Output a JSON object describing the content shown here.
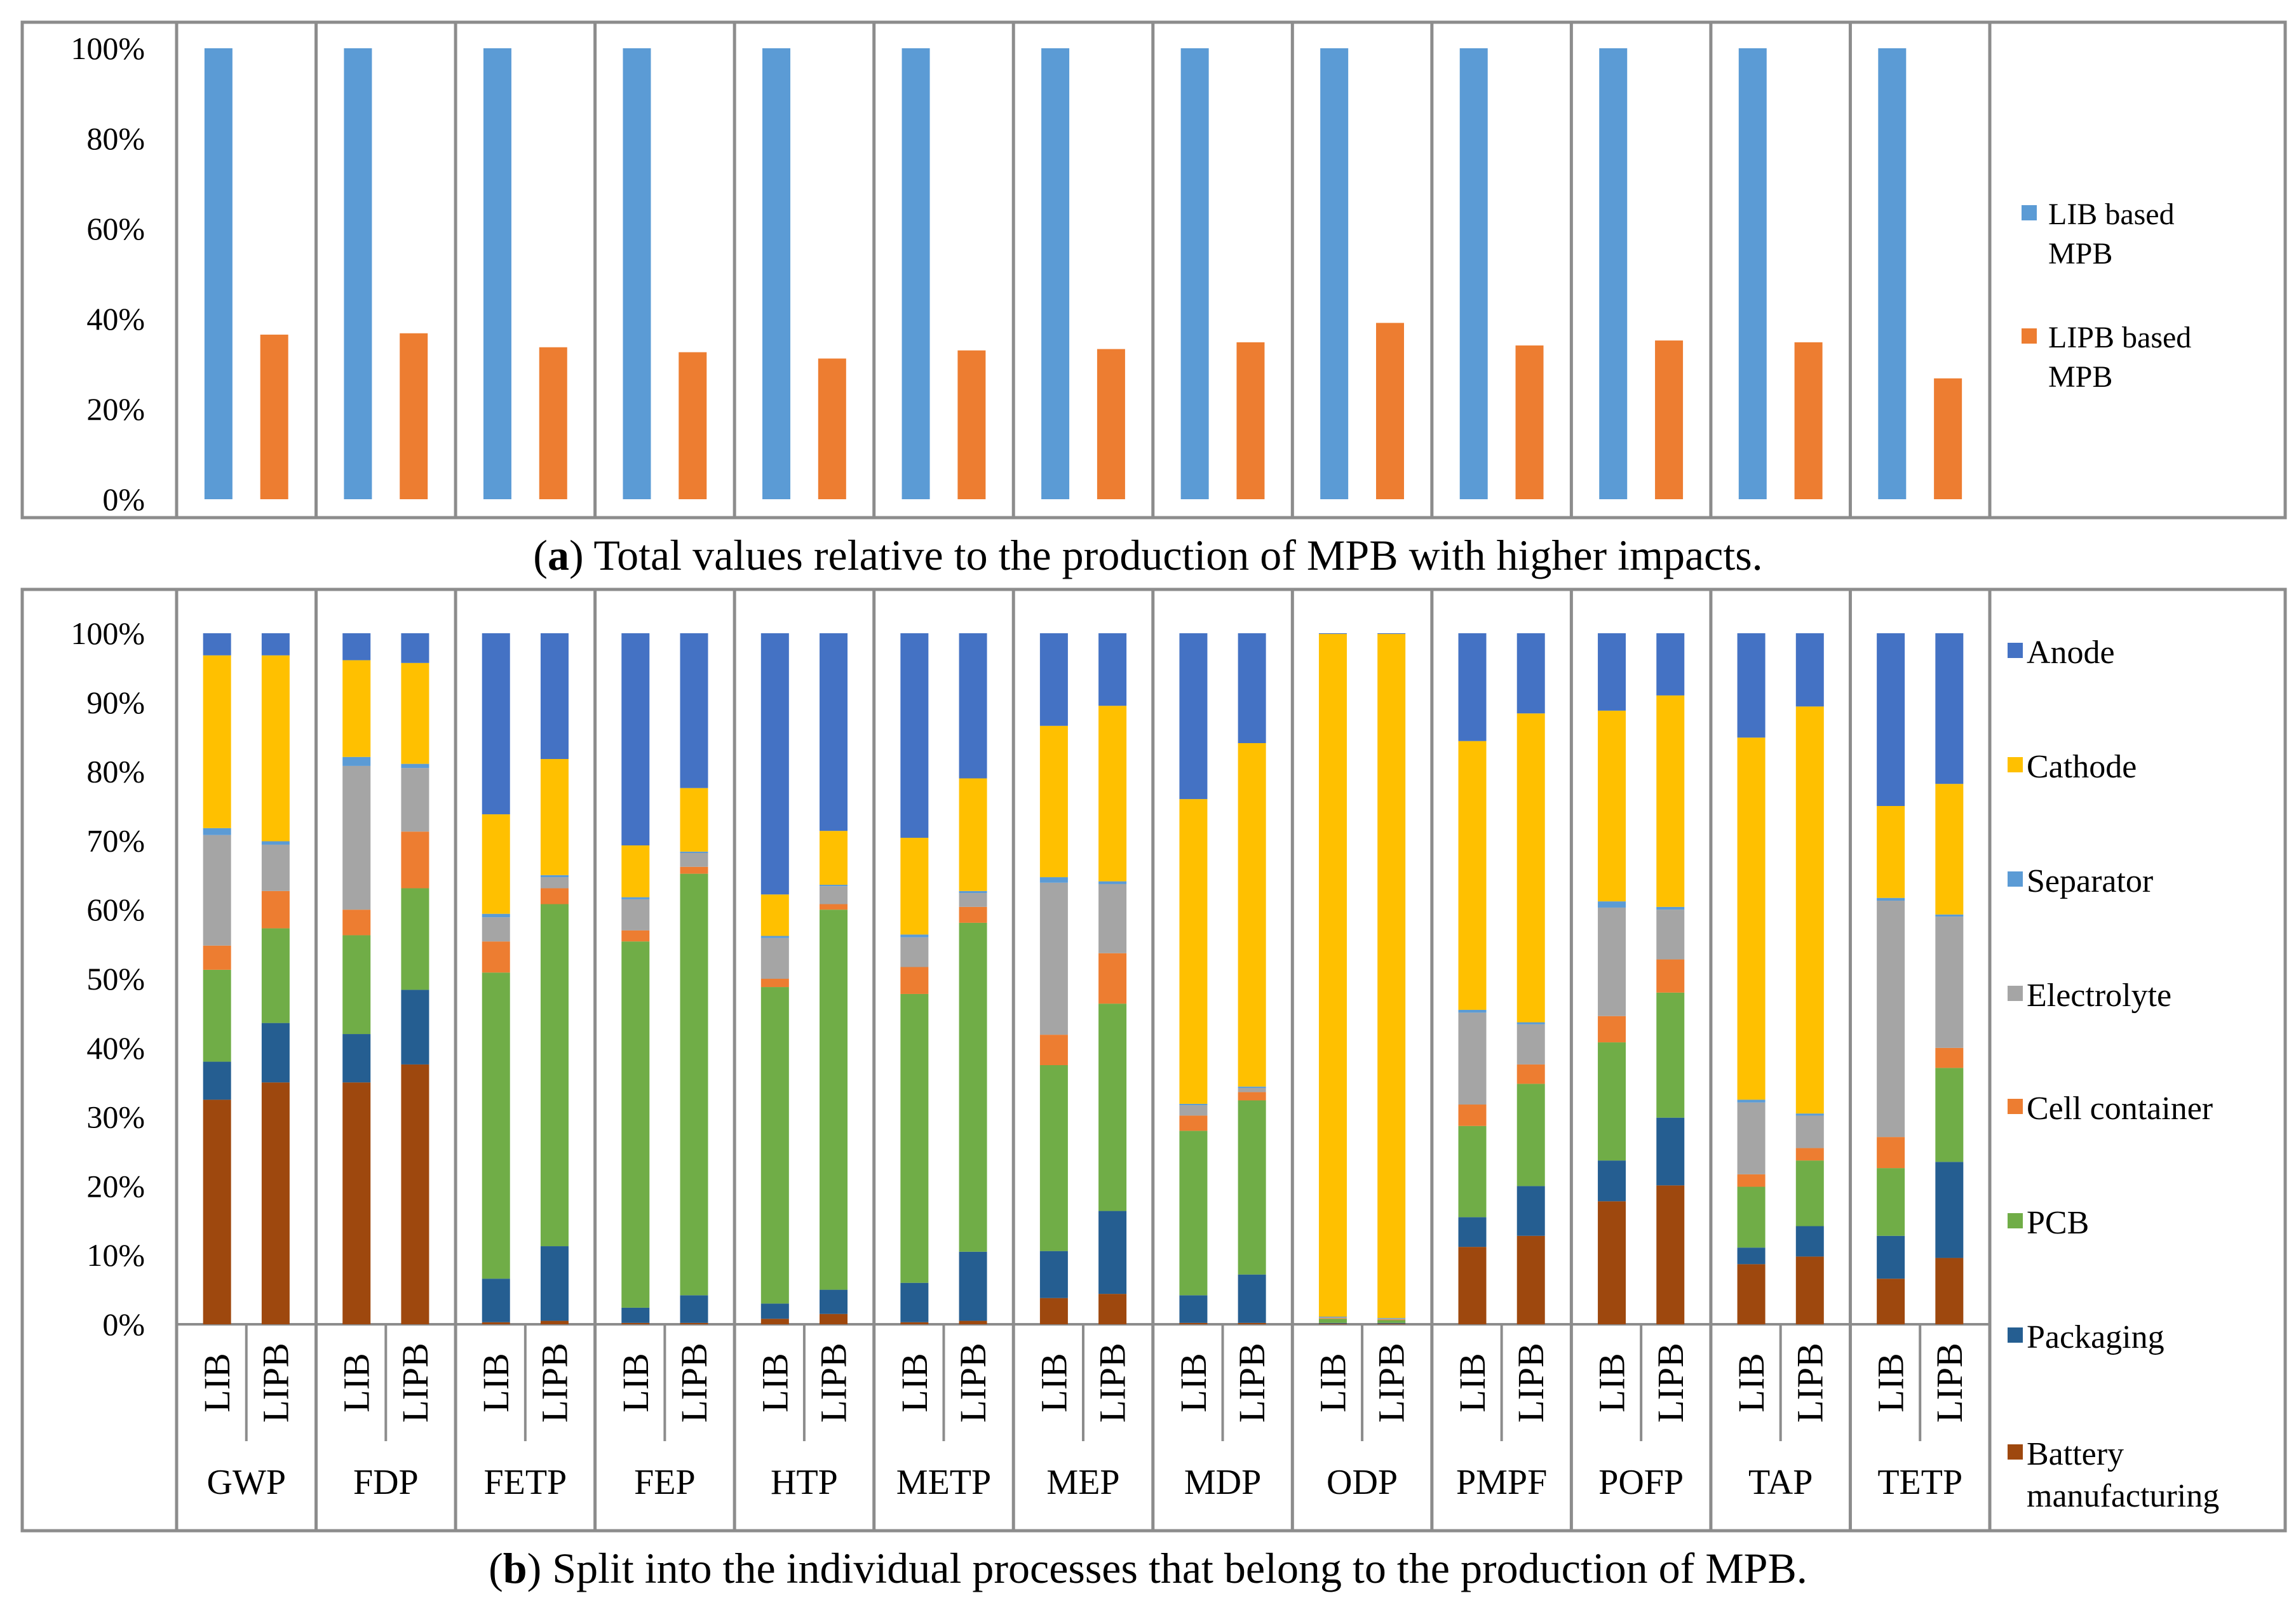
{
  "caption_a": {
    "letter": "a",
    "text": ") Total values relative to the production of MPB with higher impacts."
  },
  "caption_b": {
    "letter": "b",
    "text": ") Split into the individual processes that belong to the production of MPB."
  },
  "chart_data": [
    {
      "type": "bar",
      "title": "",
      "categories": [
        "GWP",
        "FDP",
        "FETP",
        "FEP",
        "HTP",
        "METP",
        "MEP",
        "MDP",
        "ODP",
        "PMPF",
        "POFP",
        "TAP",
        "TETP"
      ],
      "series": [
        {
          "name": "LIB based MPB",
          "legend_lines": [
            "LIB based",
            "MPB"
          ],
          "color": "#5B9BD5",
          "values": [
            100,
            100,
            100,
            100,
            100,
            100,
            100,
            100,
            100,
            100,
            100,
            100,
            100
          ]
        },
        {
          "name": "LIPB based MPB",
          "legend_lines": [
            "LIPB based",
            "MPB"
          ],
          "color": "#ED7D31",
          "values": [
            36.5,
            36.8,
            33.7,
            32.6,
            31.2,
            33.0,
            33.3,
            34.8,
            39.1,
            34.1,
            35.2,
            34.8,
            26.8
          ]
        }
      ],
      "ylim": [
        0,
        100
      ],
      "ytick_labels": [
        "0%",
        "20%",
        "40%",
        "60%",
        "80%",
        "100%"
      ],
      "xlabel": "",
      "ylabel": ""
    },
    {
      "type": "bar",
      "stacked": true,
      "title": "",
      "categories": [
        "GWP",
        "FDP",
        "FETP",
        "FEP",
        "HTP",
        "METP",
        "MEP",
        "MDP",
        "ODP",
        "PMPF",
        "POFP",
        "TAP",
        "TETP"
      ],
      "subcategories": [
        "LIB",
        "LIPB"
      ],
      "stack_order_bottom_to_top": [
        "Battery manufacturing",
        "Packaging",
        "PCB",
        "Cell container",
        "Electrolyte",
        "Separator",
        "Cathode",
        "Anode"
      ],
      "colors": {
        "Battery manufacturing": "#9E480E",
        "Packaging": "#255E91",
        "PCB": "#70AD47",
        "Cell container": "#ED7D31",
        "Electrolyte": "#A5A5A5",
        "Separator": "#5B9BD5",
        "Cathode": "#FFC000",
        "Anode": "#4472C4"
      },
      "legend_order": [
        {
          "name": "Anode",
          "lines": [
            "Anode"
          ]
        },
        {
          "name": "Cathode",
          "lines": [
            "Cathode"
          ]
        },
        {
          "name": "Separator",
          "lines": [
            "Separator"
          ]
        },
        {
          "name": "Electrolyte",
          "lines": [
            "Electrolyte"
          ]
        },
        {
          "name": "Cell container",
          "lines": [
            "Cell container"
          ]
        },
        {
          "name": "PCB",
          "lines": [
            "PCB"
          ]
        },
        {
          "name": "Packaging",
          "lines": [
            "Packaging"
          ]
        },
        {
          "name": "Battery manufacturing",
          "lines": [
            "Battery",
            "manufacturing"
          ]
        }
      ],
      "bars": [
        {
          "category": "GWP",
          "sub": "LIB",
          "values": [
            32.5,
            5.5,
            13.3,
            3.5,
            16.0,
            1.0,
            25.0,
            3.2
          ]
        },
        {
          "category": "GWP",
          "sub": "LIPB",
          "values": [
            35.0,
            8.6,
            13.7,
            5.4,
            6.7,
            0.5,
            26.9,
            3.2
          ]
        },
        {
          "category": "FDP",
          "sub": "LIB",
          "values": [
            35.0,
            7.0,
            14.3,
            3.7,
            20.8,
            1.3,
            14.0,
            3.9
          ]
        },
        {
          "category": "FDP",
          "sub": "LIPB",
          "values": [
            37.6,
            10.8,
            14.7,
            8.2,
            9.2,
            0.6,
            14.6,
            4.3
          ]
        },
        {
          "category": "FETP",
          "sub": "LIB",
          "values": [
            0.3,
            6.3,
            44.3,
            4.5,
            3.5,
            0.5,
            14.4,
            26.2
          ]
        },
        {
          "category": "FETP",
          "sub": "LIPB",
          "values": [
            0.5,
            10.8,
            49.5,
            2.3,
            1.6,
            0.3,
            16.8,
            18.2
          ]
        },
        {
          "category": "FEP",
          "sub": "LIB",
          "values": [
            0.2,
            2.2,
            53.0,
            1.6,
            4.5,
            0.3,
            7.5,
            30.7
          ]
        },
        {
          "category": "FEP",
          "sub": "LIPB",
          "values": [
            0.2,
            4.0,
            61.0,
            1.0,
            2.0,
            0.2,
            9.2,
            22.4
          ]
        },
        {
          "category": "HTP",
          "sub": "LIB",
          "values": [
            0.8,
            2.2,
            45.8,
            1.2,
            5.9,
            0.3,
            6.0,
            37.8
          ]
        },
        {
          "category": "HTP",
          "sub": "LIPB",
          "values": [
            1.5,
            3.5,
            55.0,
            0.8,
            2.6,
            0.2,
            7.8,
            28.6
          ]
        },
        {
          "category": "METP",
          "sub": "LIB",
          "values": [
            0.3,
            5.7,
            41.8,
            3.9,
            4.3,
            0.4,
            14.0,
            29.6
          ]
        },
        {
          "category": "METP",
          "sub": "LIPB",
          "values": [
            0.5,
            10.0,
            47.6,
            2.3,
            2.0,
            0.3,
            16.3,
            21.0
          ]
        },
        {
          "category": "MEP",
          "sub": "LIB",
          "values": [
            3.8,
            6.8,
            26.9,
            4.4,
            22.0,
            0.8,
            21.9,
            13.4
          ]
        },
        {
          "category": "MEP",
          "sub": "LIPB",
          "values": [
            4.4,
            12.0,
            30.0,
            7.3,
            10.0,
            0.4,
            25.4,
            10.5
          ]
        },
        {
          "category": "MDP",
          "sub": "LIB",
          "values": [
            0.2,
            4.0,
            23.8,
            2.2,
            1.5,
            0.2,
            44.1,
            24.0
          ]
        },
        {
          "category": "MDP",
          "sub": "LIPB",
          "values": [
            0.2,
            7.0,
            25.2,
            1.2,
            0.6,
            0.2,
            49.7,
            15.9
          ]
        },
        {
          "category": "ODP",
          "sub": "LIB",
          "values": [
            0.1,
            0.1,
            0.6,
            0.1,
            0.1,
            0.1,
            98.8,
            0.1
          ]
        },
        {
          "category": "ODP",
          "sub": "LIPB",
          "values": [
            0.1,
            0.1,
            0.4,
            0.1,
            0.1,
            0.1,
            99.0,
            0.1
          ]
        },
        {
          "category": "PMPF",
          "sub": "LIB",
          "values": [
            11.2,
            4.3,
            13.2,
            3.1,
            13.3,
            0.4,
            38.9,
            15.6
          ]
        },
        {
          "category": "PMPF",
          "sub": "LIPB",
          "values": [
            12.8,
            7.2,
            14.8,
            2.8,
            5.8,
            0.3,
            44.7,
            11.6
          ]
        },
        {
          "category": "POFP",
          "sub": "LIB",
          "values": [
            17.8,
            5.9,
            17.1,
            3.8,
            15.7,
            0.9,
            27.6,
            11.2
          ]
        },
        {
          "category": "POFP",
          "sub": "LIPB",
          "values": [
            20.1,
            9.8,
            18.1,
            4.8,
            7.2,
            0.4,
            30.6,
            9.0
          ]
        },
        {
          "category": "TAP",
          "sub": "LIB",
          "values": [
            8.7,
            2.4,
            8.8,
            1.8,
            10.4,
            0.4,
            52.4,
            15.1
          ]
        },
        {
          "category": "TAP",
          "sub": "LIPB",
          "values": [
            9.8,
            4.4,
            9.5,
            1.8,
            4.7,
            0.3,
            58.9,
            10.6
          ]
        },
        {
          "category": "TETP",
          "sub": "LIB",
          "values": [
            6.6,
            6.2,
            9.8,
            4.5,
            34.2,
            0.4,
            13.3,
            25.0
          ]
        },
        {
          "category": "TETP",
          "sub": "LIPB",
          "values": [
            9.6,
            13.9,
            13.6,
            2.9,
            19.0,
            0.3,
            18.9,
            21.8
          ]
        }
      ],
      "ylim": [
        0,
        100
      ],
      "ytick_labels": [
        "0%",
        "10%",
        "20%",
        "30%",
        "40%",
        "50%",
        "60%",
        "70%",
        "80%",
        "90%",
        "100%"
      ],
      "xlabel": "",
      "ylabel": ""
    }
  ]
}
